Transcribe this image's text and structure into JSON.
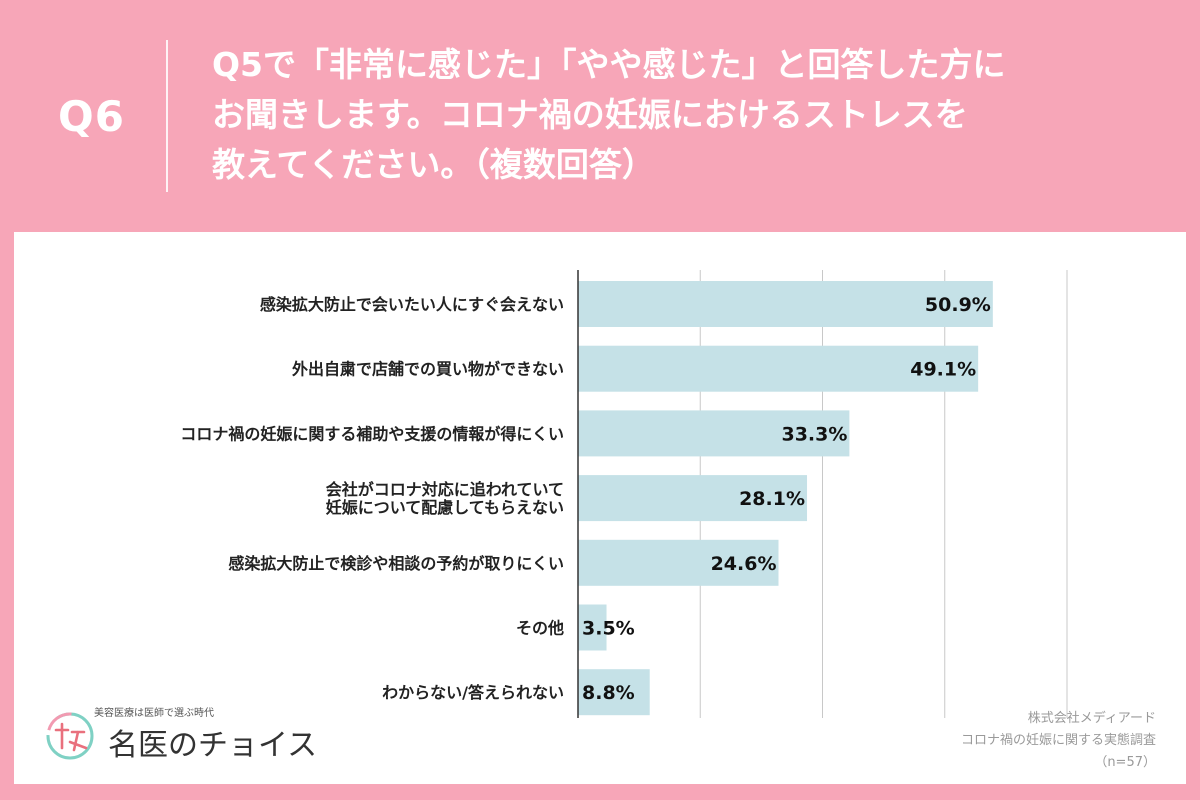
{
  "header": {
    "q_number": "Q6",
    "question_lines": [
      "Q5で「非常に感じた」「やや感じた」と回答した方に",
      "お聞きします。コロナ禍の妊娠におけるストレスを",
      "教えてください。（複数回答）"
    ]
  },
  "chart_data": {
    "type": "bar",
    "orientation": "horizontal",
    "categories": [
      [
        "感染拡大防止で会いたい人にすぐ会えない"
      ],
      [
        "外出自粛で店舗での買い物ができない"
      ],
      [
        "コロナ禍の妊娠に関する補助や支援の情報が得にくい"
      ],
      [
        "会社がコロナ対応に追われていて",
        "妊娠について配慮してもらえない"
      ],
      [
        "感染拡大防止で検診や相談の予約が取りにくい"
      ],
      [
        "その他"
      ],
      [
        "わからない/答えられない"
      ]
    ],
    "values": [
      50.9,
      49.1,
      33.3,
      28.1,
      24.6,
      3.5,
      8.8
    ],
    "value_labels": [
      "50.9%",
      "49.1%",
      "33.3%",
      "28.1%",
      "24.6%",
      "3.5%",
      "8.8%"
    ],
    "xlim": [
      0,
      60
    ],
    "grid": true,
    "bar_color": "#c5e1e7",
    "grid_color": "#c8c8c8"
  },
  "logo": {
    "tagline": "美容医療は医師で選ぶ時代",
    "name": "名医のチョイス"
  },
  "source": {
    "company": "株式会社メディアード",
    "survey": "コロナ禍の妊娠に関する実態調査",
    "sample": "（n=57）"
  },
  "colors": {
    "background": "#f7a6b8",
    "panel": "#ffffff",
    "text": "#222222"
  }
}
